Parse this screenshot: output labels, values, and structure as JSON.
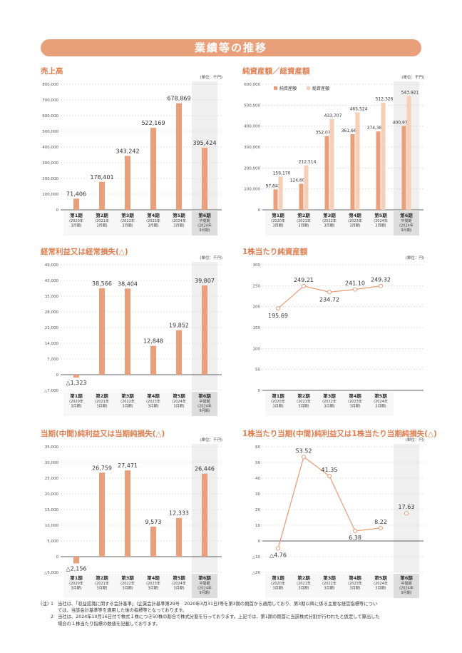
{
  "page_title": "業績等の推移",
  "colors": {
    "bar": "#e9a07a",
    "bar_light": "#f6cfb8",
    "line": "#e9a07a",
    "accent_title": "#e07e50",
    "banner": "#e9a07a",
    "shade": "#ececec"
  },
  "periods_6": [
    {
      "main": "第1期",
      "sub": [
        "(2020年",
        "3月期)"
      ]
    },
    {
      "main": "第2期",
      "sub": [
        "(2021年",
        "3月期)"
      ]
    },
    {
      "main": "第3期",
      "sub": [
        "(2022年",
        "3月期)"
      ]
    },
    {
      "main": "第4期",
      "sub": [
        "(2023年",
        "3月期)"
      ]
    },
    {
      "main": "第5期",
      "sub": [
        "(2024年",
        "3月期)"
      ]
    },
    {
      "main": "第6期",
      "sub": [
        "中間期",
        "(2024年",
        "9月期)"
      ]
    }
  ],
  "periods_5": [
    {
      "main": "第1期",
      "sub": [
        "(2020年",
        "3月期)"
      ]
    },
    {
      "main": "第2期",
      "sub": [
        "(2021年",
        "3月期)"
      ]
    },
    {
      "main": "第3期",
      "sub": [
        "(2022年",
        "3月期)"
      ]
    },
    {
      "main": "第4期",
      "sub": [
        "(2023年",
        "3月期)"
      ]
    },
    {
      "main": "第5期",
      "sub": [
        "(2024年",
        "3月期)"
      ]
    }
  ],
  "chart_data": [
    {
      "id": "sales",
      "type": "bar",
      "title": "売上高",
      "unit": "(単位：千円)",
      "ylim": [
        0,
        800000
      ],
      "yticks": [
        0,
        100000,
        200000,
        300000,
        400000,
        500000,
        600000,
        700000,
        800000
      ],
      "ytick_labels": [
        "0",
        "100,000",
        "200,000",
        "300,000",
        "400,000",
        "500,000",
        "600,000",
        "700,000",
        "800,000"
      ],
      "categories": [
        "第1期",
        "第2期",
        "第3期",
        "第4期",
        "第5期",
        "第6期"
      ],
      "values": [
        71406,
        178401,
        343242,
        522169,
        678869,
        395424
      ],
      "value_labels": [
        "71,406",
        "178,401",
        "343,242",
        "522,169",
        "678,869",
        "395,424"
      ],
      "shade_last": true
    },
    {
      "id": "assets",
      "type": "bar",
      "title": "純資産額／総資産額",
      "unit": "(単位：千円)",
      "ylim": [
        0,
        600000
      ],
      "yticks": [
        0,
        100000,
        200000,
        300000,
        400000,
        500000,
        600000
      ],
      "ytick_labels": [
        "0",
        "100,000",
        "200,000",
        "300,000",
        "400,000",
        "500,000",
        "600,000"
      ],
      "categories": [
        "第1期",
        "第2期",
        "第3期",
        "第4期",
        "第5期",
        "第6期"
      ],
      "series": [
        {
          "name": "純資産額",
          "values": [
            97843,
            124602,
            352074,
            361661,
            374385,
            400979
          ],
          "value_labels": [
            "97,843",
            "124,602",
            "352,074",
            "361,661",
            "374,385",
            "400,979"
          ]
        },
        {
          "name": "総資産額",
          "values": [
            159170,
            212514,
            433707,
            465524,
            512326,
            543921
          ],
          "value_labels": [
            "159,170",
            "212,514",
            "433,707",
            "465,524",
            "512,326",
            "543,921"
          ]
        }
      ],
      "legend": "top-left",
      "shade_last": true
    },
    {
      "id": "ordinary",
      "type": "bar",
      "title": "経常利益又は経常損失(△)",
      "unit": "(単位：千円)",
      "ylim": [
        -7000,
        49000
      ],
      "yticks": [
        -7000,
        0,
        7000,
        14000,
        21000,
        28000,
        35000,
        42000,
        49000
      ],
      "ytick_labels": [
        "△7,000",
        "0",
        "7,000",
        "14,000",
        "21,000",
        "28,000",
        "35,000",
        "42,000",
        "49,000"
      ],
      "categories": [
        "第1期",
        "第2期",
        "第3期",
        "第4期",
        "第5期",
        "第6期"
      ],
      "values": [
        -1323,
        38566,
        38404,
        12848,
        19852,
        39807
      ],
      "value_labels": [
        "△1,323",
        "38,566",
        "38,404",
        "12,848",
        "19,852",
        "39,807"
      ],
      "shade_last": true
    },
    {
      "id": "bps",
      "type": "line",
      "title": "1株当たり純資産額",
      "unit": "(単位：円)",
      "ylim": [
        0,
        300
      ],
      "yticks": [
        0,
        50,
        100,
        150,
        200,
        250,
        300
      ],
      "ytick_labels": [
        "0",
        "50",
        "100",
        "150",
        "200",
        "250",
        "300"
      ],
      "categories": [
        "第1期",
        "第2期",
        "第3期",
        "第4期",
        "第5期"
      ],
      "values": [
        195.69,
        249.21,
        234.72,
        241.1,
        249.32
      ],
      "value_labels": [
        "195.69",
        "249.21",
        "234.72",
        "241.10",
        "249.32"
      ],
      "shade_last": false
    },
    {
      "id": "netincome",
      "type": "bar",
      "title": "当期(中間)純利益又は当期純損失(△)",
      "unit": "(単位：千円)",
      "ylim": [
        -5000,
        35000
      ],
      "yticks": [
        -5000,
        0,
        5000,
        10000,
        15000,
        20000,
        25000,
        30000,
        35000
      ],
      "ytick_labels": [
        "△5,000",
        "0",
        "5,000",
        "10,000",
        "15,000",
        "20,000",
        "25,000",
        "30,000",
        "35,000"
      ],
      "categories": [
        "第1期",
        "第2期",
        "第3期",
        "第4期",
        "第5期",
        "第6期"
      ],
      "values": [
        -2156,
        26759,
        27471,
        9573,
        12333,
        26446
      ],
      "value_labels": [
        "△2,156",
        "26,759",
        "27,471",
        "9,573",
        "12,333",
        "26,446"
      ],
      "shade_last": true
    },
    {
      "id": "eps",
      "type": "line",
      "title": "1株当たり当期(中間)純利益又は1株当たり当期純損失(△)",
      "unit": "(単位：円)",
      "ylim": [
        -20,
        60
      ],
      "yticks": [
        -20,
        -10,
        0,
        10,
        20,
        30,
        40,
        50,
        60
      ],
      "ytick_labels": [
        "△20",
        "△10",
        "0",
        "10",
        "20",
        "30",
        "40",
        "50",
        "60"
      ],
      "categories": [
        "第1期",
        "第2期",
        "第3期",
        "第4期",
        "第5期",
        "第6期"
      ],
      "values": [
        -4.76,
        53.52,
        41.35,
        6.38,
        8.22,
        17.63
      ],
      "value_labels": [
        "△4.76",
        "53.52",
        "41.35",
        "6.38",
        "8.22",
        "17.63"
      ],
      "connect_last": false,
      "shade_last": true
    }
  ],
  "notes": {
    "mark": "(注)",
    "items": [
      {
        "num": "1",
        "lines": [
          "当社は、「収益認識に関する会計基準」(企業会計基準第29号　2020年3月31日)等を第3期の期首から適用しており、第3期以降に係る主要な経営指標等につい",
          "ては、当該会計基準等を適用した後の指標等となっております。"
        ]
      },
      {
        "num": "2",
        "lines": [
          "当社は、2024年10月16日付で株式１株につき50株の割合で株式分割を行っております。上記では、第1期の期首に当該株式分割が行われたと仮定して算出した",
          "場合の１株当たり指標の数値を記載しております。"
        ]
      }
    ]
  }
}
